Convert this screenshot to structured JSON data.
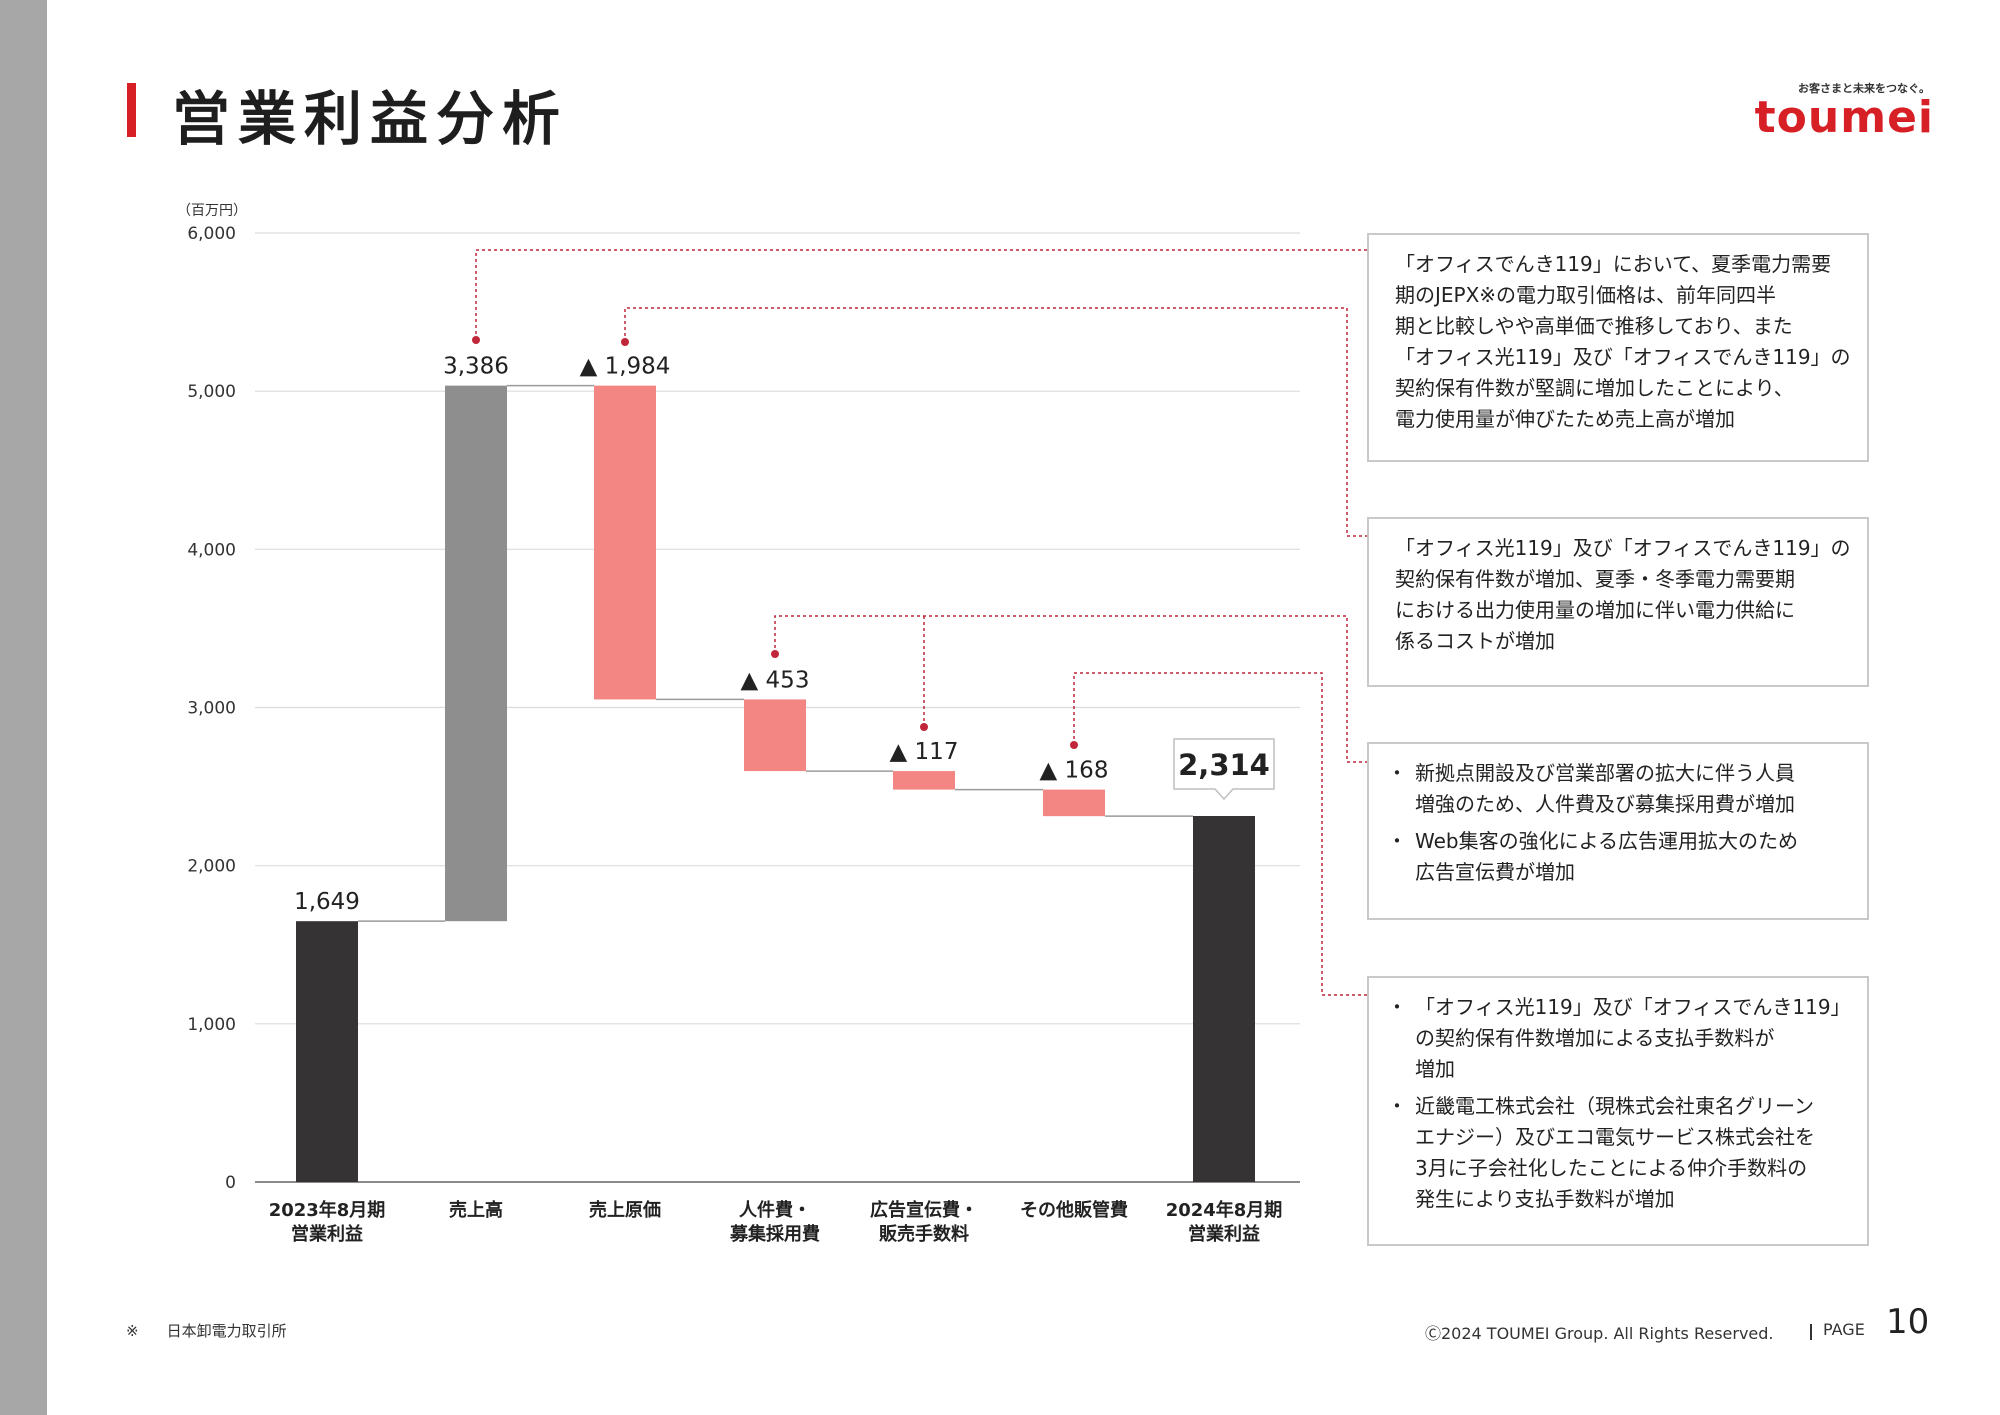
{
  "page": {
    "title": "営業利益分析",
    "logo_tagline": "お客さまと未来をつなぐ。",
    "logo_text": "toumei",
    "footnote_mark": "※",
    "footnote_text": "日本卸電力取引所",
    "copyright": "Ⓒ2024 TOUMEI Group. All Rights Reserved.",
    "page_label": "PAGE",
    "page_number": "10",
    "colors": {
      "accent": "#d71f26",
      "total_bar": "#363334",
      "increase_bar": "#8e8e8e",
      "decrease_bar": "#f38582",
      "connector": "#c0273a"
    }
  },
  "chart_data": {
    "type": "bar",
    "subtype": "waterfall",
    "unit_label": "（百万円）",
    "ylim": [
      0,
      6000
    ],
    "yticks": [
      "0",
      "1,000",
      "2,000",
      "3,000",
      "4,000",
      "5,000",
      "6,000"
    ],
    "grid": true,
    "categories": [
      [
        "2023年8月期",
        "営業利益"
      ],
      [
        "売上高"
      ],
      [
        "売上原価"
      ],
      [
        "人件費・",
        "募集採用費"
      ],
      [
        "広告宣伝費・",
        "販売手数料"
      ],
      [
        "その他販管費"
      ],
      [
        "2024年8月期",
        "営業利益"
      ]
    ],
    "steps": [
      {
        "kind": "total",
        "value": 1649,
        "label": "1,649"
      },
      {
        "kind": "increase",
        "value": 3386,
        "label": "3,386"
      },
      {
        "kind": "decrease",
        "value": -1984,
        "label": "▲ 1,984"
      },
      {
        "kind": "decrease",
        "value": -453,
        "label": "▲ 453"
      },
      {
        "kind": "decrease",
        "value": -117,
        "label": "▲ 117"
      },
      {
        "kind": "decrease",
        "value": -168,
        "label": "▲ 168"
      },
      {
        "kind": "total",
        "value": 2314,
        "label": "2,314"
      }
    ]
  },
  "callouts": [
    {
      "lines": [
        "「オフィスでんき119」において、夏季電力需要",
        "期のJEPX※の電力取引価格は、前年同四半",
        "期と比較しやや高単価で推移しており、また",
        "「オフィス光119」及び「オフィスでんき119」の",
        "契約保有件数が堅調に増加したことにより、",
        "電力使用量が伸びたため売上高が増加"
      ]
    },
    {
      "lines": [
        "「オフィス光119」及び「オフィスでんき119」の",
        "契約保有件数が増加、夏季・冬季電力需要期",
        "における出力使用量の増加に伴い電力供給に",
        "係るコストが増加"
      ]
    },
    {
      "bullets": [
        [
          "新拠点開設及び営業部署の拡大に伴う人員",
          "増強のため、人件費及び募集採用費が増加"
        ],
        [
          "Web集客の強化による広告運用拡大のため",
          "広告宣伝費が増加"
        ]
      ]
    },
    {
      "bullets": [
        [
          "「オフィス光119」及び「オフィスでんき119」",
          "の契約保有件数増加による支払手数料が",
          "増加"
        ],
        [
          "近畿電工株式会社（現株式会社東名グリーン",
          "エナジー）及びエコ電気サービス株式会社を",
          "3月に子会社化したことによる仲介手数料の",
          "発生により支払手数料が増加"
        ]
      ]
    }
  ]
}
